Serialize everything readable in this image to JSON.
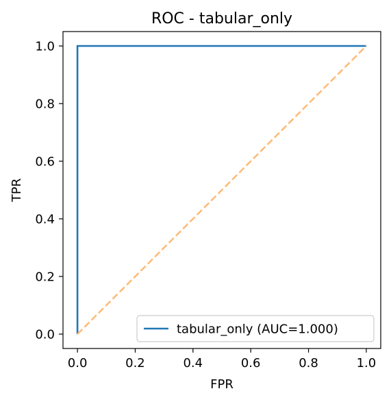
{
  "chart_data": {
    "type": "line",
    "title": "ROC - tabular_only",
    "xlabel": "FPR",
    "ylabel": "TPR",
    "xlim": [
      -0.05,
      1.05
    ],
    "ylim": [
      -0.05,
      1.05
    ],
    "xticks": [
      0.0,
      0.2,
      0.4,
      0.6,
      0.8,
      1.0
    ],
    "yticks": [
      0.0,
      0.2,
      0.4,
      0.6,
      0.8,
      1.0
    ],
    "xtick_labels": [
      "0.0",
      "0.2",
      "0.4",
      "0.6",
      "0.8",
      "1.0"
    ],
    "ytick_labels": [
      "0.0",
      "0.2",
      "0.4",
      "0.6",
      "0.8",
      "1.0"
    ],
    "grid": false,
    "legend_position": "lower-right",
    "series": [
      {
        "name": "tabular_only (AUC=1.000)",
        "x": [
          0.0,
          0.0,
          1.0
        ],
        "y": [
          0.0,
          1.0,
          1.0
        ],
        "color": "#1f77b4",
        "style": "solid"
      },
      {
        "x": [
          0.0,
          1.0
        ],
        "y": [
          0.0,
          1.0
        ],
        "color": "#ffbb78",
        "style": "dashed"
      }
    ]
  }
}
